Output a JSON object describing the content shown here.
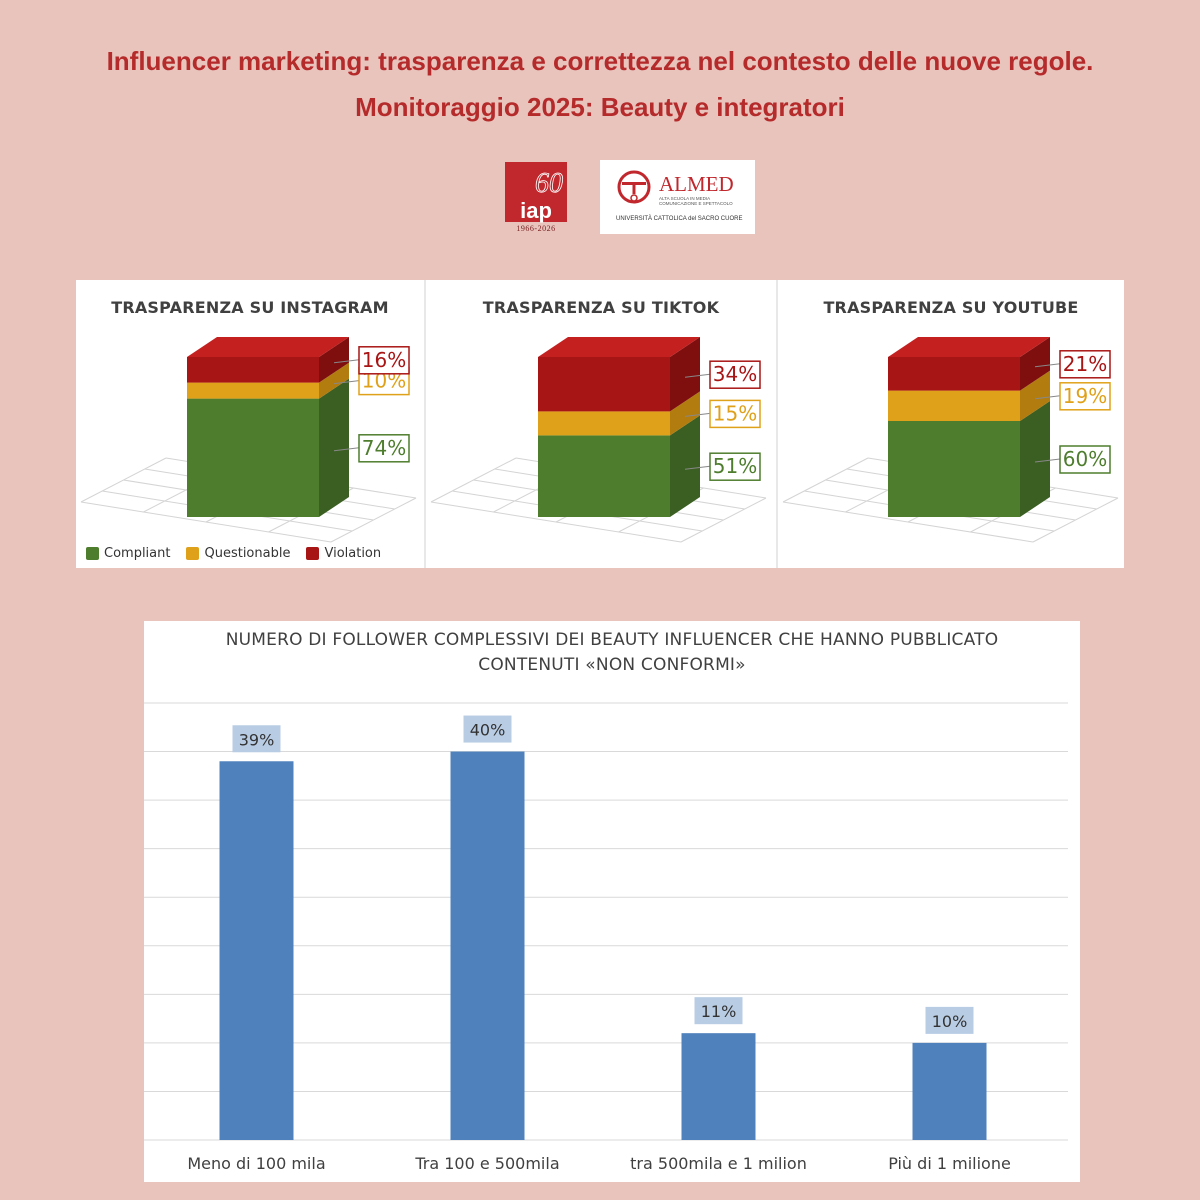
{
  "header": {
    "title_line1": "Influencer marketing: trasparenza e correttezza nel contesto delle nuove regole.",
    "title_line2": "Monitoraggio 2025: Beauty e integratori"
  },
  "logos": {
    "iap": {
      "number": "60",
      "name": "iap",
      "years": "1966-2026"
    },
    "almed": {
      "name": "ALMED",
      "subtitle1": "ALTA SCUOLA IN MEDIA",
      "subtitle2": "COMUNICAZIONE E SPETTACOLO",
      "university": "UNIVERSITÀ CATTOLICA del SACRO CUORE"
    }
  },
  "colors": {
    "compliant": "#4e7d2e",
    "questionable": "#e0a11a",
    "violation": "#a81515",
    "bar": "#4f81bd",
    "title": "#b52a2a"
  },
  "chart_data": [
    {
      "type": "bar",
      "title": "TRASPARENZA SU INSTAGRAM",
      "stacked": true,
      "series": [
        {
          "name": "Compliant",
          "values": [
            74
          ],
          "label": "74%"
        },
        {
          "name": "Questionable",
          "values": [
            10
          ],
          "label": "10%"
        },
        {
          "name": "Violation",
          "values": [
            16
          ],
          "label": "16%"
        }
      ],
      "legend": "bottom-left"
    },
    {
      "type": "bar",
      "title": "TRASPARENZA SU TIKTOK",
      "stacked": true,
      "series": [
        {
          "name": "Compliant",
          "values": [
            51
          ],
          "label": "51%"
        },
        {
          "name": "Questionable",
          "values": [
            15
          ],
          "label": "15%"
        },
        {
          "name": "Violation",
          "values": [
            34
          ],
          "label": "34%"
        }
      ]
    },
    {
      "type": "bar",
      "title": "TRASPARENZA SU YOUTUBE",
      "stacked": true,
      "series": [
        {
          "name": "Compliant",
          "values": [
            60
          ],
          "label": "60%"
        },
        {
          "name": "Questionable",
          "values": [
            19
          ],
          "label": "19%"
        },
        {
          "name": "Violation",
          "values": [
            21
          ],
          "label": "21%"
        }
      ]
    },
    {
      "type": "bar",
      "title_line1": "NUMERO DI FOLLOWER COMPLESSIVI DEI BEAUTY INFLUENCER CHE HANNO PUBBLICATO",
      "title_line2": "CONTENUTI «NON CONFORMI»",
      "categories": [
        "Meno di 100 mila",
        "Tra 100 e 500mila",
        "tra 500mila e 1 milion",
        "Più di 1 milione"
      ],
      "values": [
        39,
        40,
        11,
        10
      ],
      "labels": [
        "39%",
        "40%",
        "11%",
        "10%"
      ],
      "ylim": [
        0,
        45
      ],
      "grid": true
    }
  ],
  "legend": {
    "compliant": "Compliant",
    "questionable": "Questionable",
    "violation": "Violation"
  }
}
